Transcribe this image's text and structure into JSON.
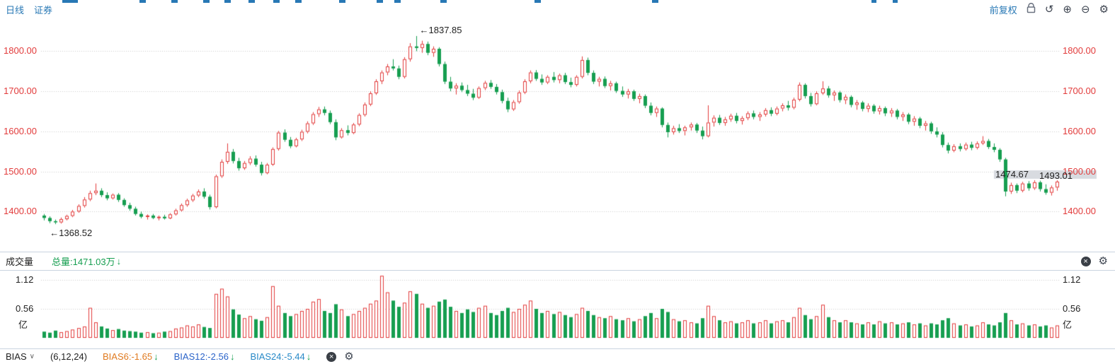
{
  "toolbar": {
    "period_label": "日线",
    "instrument_label": "证券",
    "adjust_label": "前复权",
    "undo_glyph": "↺",
    "zoom_in_glyph": "⊕",
    "zoom_out_glyph": "⊖",
    "settings_glyph": "⚙",
    "close_glyph": "×"
  },
  "colors": {
    "accent": "#2878b5",
    "up": "#e23b3b",
    "down": "#169e50",
    "axis_text": "#e23b3b",
    "dark": "#222222",
    "band": "#d8dbe0",
    "grid": "#cfcfcf",
    "orange": "#e07a1f",
    "blue": "#2a63c9",
    "blue2": "#2789c7"
  },
  "volume_panel": {
    "title": "成交量",
    "total_label": "总量:1471.03万",
    "down_arrow": "↓"
  },
  "bias_panel": {
    "indicator_label": "BIAS",
    "dropdown_glyph": "∨",
    "params_label": "(6,12,24)",
    "down_arrow": "↓",
    "values": [
      {
        "label": "BIAS6:-1.65",
        "color": "#e07a1f"
      },
      {
        "label": "BIAS12:-2.56",
        "color": "#2a63c9"
      },
      {
        "label": "BIAS24:-5.44",
        "color": "#2789c7"
      }
    ]
  },
  "chart_data": {
    "type": "candlestick",
    "title": "",
    "price_axis": {
      "ticks": [
        "1800.00",
        "1700.00",
        "1600.00",
        "1500.00",
        "1400.00"
      ],
      "range": [
        1330,
        1866
      ]
    },
    "volume_axis": {
      "ticks": [
        "1.12",
        "0.56"
      ],
      "unit": "亿",
      "range": [
        0,
        1.25
      ]
    },
    "annotations": {
      "high": "←1837.85",
      "low": "←1368.52",
      "last_price": "1474.67",
      "axis_highlight": "1493.01"
    },
    "candles": [
      [
        1390,
        1394,
        1378,
        1384
      ],
      [
        1384,
        1388,
        1371,
        1376
      ],
      [
        1376,
        1380,
        1368.52,
        1373
      ],
      [
        1373,
        1385,
        1370,
        1381
      ],
      [
        1381,
        1392,
        1378,
        1389
      ],
      [
        1389,
        1404,
        1386,
        1400
      ],
      [
        1400,
        1418,
        1397,
        1414
      ],
      [
        1414,
        1436,
        1410,
        1430
      ],
      [
        1430,
        1452,
        1426,
        1446
      ],
      [
        1446,
        1470,
        1441,
        1452
      ],
      [
        1452,
        1458,
        1436,
        1441
      ],
      [
        1441,
        1448,
        1428,
        1433
      ],
      [
        1433,
        1445,
        1430,
        1442
      ],
      [
        1442,
        1446,
        1424,
        1429
      ],
      [
        1429,
        1433,
        1412,
        1416
      ],
      [
        1416,
        1422,
        1402,
        1407
      ],
      [
        1407,
        1412,
        1390,
        1394
      ],
      [
        1394,
        1400,
        1383,
        1387
      ],
      [
        1387,
        1393,
        1380,
        1390
      ],
      [
        1390,
        1394,
        1381,
        1384
      ],
      [
        1384,
        1390,
        1378,
        1387
      ],
      [
        1387,
        1392,
        1380,
        1383
      ],
      [
        1383,
        1396,
        1381,
        1393
      ],
      [
        1393,
        1407,
        1390,
        1403
      ],
      [
        1403,
        1420,
        1400,
        1416
      ],
      [
        1416,
        1432,
        1412,
        1428
      ],
      [
        1428,
        1444,
        1424,
        1440
      ],
      [
        1440,
        1455,
        1436,
        1450
      ],
      [
        1450,
        1458,
        1432,
        1437
      ],
      [
        1437,
        1442,
        1405,
        1411
      ],
      [
        1411,
        1492,
        1408,
        1488
      ],
      [
        1488,
        1530,
        1484,
        1524
      ],
      [
        1524,
        1570,
        1519,
        1549
      ],
      [
        1549,
        1556,
        1520,
        1526
      ],
      [
        1526,
        1534,
        1502,
        1508
      ],
      [
        1508,
        1526,
        1504,
        1521
      ],
      [
        1521,
        1538,
        1516,
        1532
      ],
      [
        1532,
        1540,
        1512,
        1517
      ],
      [
        1517,
        1524,
        1490,
        1496
      ],
      [
        1496,
        1521,
        1493,
        1517
      ],
      [
        1517,
        1560,
        1514,
        1556
      ],
      [
        1556,
        1601,
        1552,
        1597
      ],
      [
        1597,
        1605,
        1574,
        1579
      ],
      [
        1579,
        1586,
        1558,
        1563
      ],
      [
        1563,
        1584,
        1560,
        1580
      ],
      [
        1580,
        1604,
        1576,
        1599
      ],
      [
        1599,
        1625,
        1595,
        1620
      ],
      [
        1620,
        1648,
        1616,
        1643
      ],
      [
        1643,
        1661,
        1636,
        1655
      ],
      [
        1655,
        1662,
        1640,
        1646
      ],
      [
        1646,
        1652,
        1618,
        1623
      ],
      [
        1623,
        1630,
        1578,
        1585
      ],
      [
        1585,
        1608,
        1582,
        1603
      ],
      [
        1603,
        1615,
        1590,
        1596
      ],
      [
        1596,
        1621,
        1593,
        1617
      ],
      [
        1617,
        1645,
        1613,
        1641
      ],
      [
        1641,
        1672,
        1637,
        1667
      ],
      [
        1667,
        1700,
        1663,
        1695
      ],
      [
        1695,
        1730,
        1691,
        1725
      ],
      [
        1725,
        1752,
        1718,
        1747
      ],
      [
        1747,
        1768,
        1740,
        1762
      ],
      [
        1762,
        1780,
        1752,
        1757
      ],
      [
        1757,
        1764,
        1730,
        1736
      ],
      [
        1736,
        1785,
        1732,
        1780
      ],
      [
        1780,
        1820,
        1774,
        1812
      ],
      [
        1812,
        1837.85,
        1800,
        1808
      ],
      [
        1808,
        1826,
        1796,
        1818
      ],
      [
        1818,
        1824,
        1790,
        1796
      ],
      [
        1796,
        1812,
        1786,
        1806
      ],
      [
        1806,
        1810,
        1762,
        1768
      ],
      [
        1768,
        1774,
        1718,
        1724
      ],
      [
        1724,
        1736,
        1700,
        1707
      ],
      [
        1707,
        1720,
        1692,
        1714
      ],
      [
        1714,
        1722,
        1698,
        1703
      ],
      [
        1703,
        1716,
        1688,
        1694
      ],
      [
        1694,
        1706,
        1678,
        1684
      ],
      [
        1684,
        1712,
        1681,
        1708
      ],
      [
        1708,
        1726,
        1703,
        1721
      ],
      [
        1721,
        1728,
        1706,
        1711
      ],
      [
        1711,
        1718,
        1692,
        1698
      ],
      [
        1698,
        1704,
        1670,
        1676
      ],
      [
        1676,
        1684,
        1648,
        1655
      ],
      [
        1655,
        1678,
        1651,
        1673
      ],
      [
        1673,
        1702,
        1669,
        1697
      ],
      [
        1697,
        1730,
        1693,
        1725
      ],
      [
        1725,
        1752,
        1720,
        1747
      ],
      [
        1747,
        1753,
        1726,
        1731
      ],
      [
        1731,
        1742,
        1716,
        1722
      ],
      [
        1722,
        1740,
        1718,
        1736
      ],
      [
        1736,
        1748,
        1722,
        1728
      ],
      [
        1728,
        1744,
        1720,
        1740
      ],
      [
        1740,
        1746,
        1718,
        1723
      ],
      [
        1723,
        1734,
        1710,
        1716
      ],
      [
        1716,
        1740,
        1712,
        1736
      ],
      [
        1736,
        1787,
        1732,
        1778
      ],
      [
        1778,
        1784,
        1740,
        1746
      ],
      [
        1746,
        1752,
        1718,
        1724
      ],
      [
        1724,
        1736,
        1712,
        1731
      ],
      [
        1731,
        1737,
        1708,
        1713
      ],
      [
        1713,
        1726,
        1702,
        1720
      ],
      [
        1720,
        1724,
        1696,
        1701
      ],
      [
        1701,
        1712,
        1686,
        1692
      ],
      [
        1692,
        1706,
        1682,
        1700
      ],
      [
        1700,
        1704,
        1676,
        1681
      ],
      [
        1681,
        1694,
        1670,
        1688
      ],
      [
        1688,
        1692,
        1658,
        1664
      ],
      [
        1664,
        1672,
        1640,
        1646
      ],
      [
        1646,
        1662,
        1636,
        1657
      ],
      [
        1657,
        1660,
        1610,
        1616
      ],
      [
        1616,
        1622,
        1585,
        1598
      ],
      [
        1598,
        1614,
        1592,
        1608
      ],
      [
        1608,
        1618,
        1596,
        1601
      ],
      [
        1601,
        1614,
        1590,
        1610
      ],
      [
        1610,
        1622,
        1602,
        1617
      ],
      [
        1617,
        1621,
        1596,
        1602
      ],
      [
        1602,
        1612,
        1580,
        1588
      ],
      [
        1588,
        1665,
        1585,
        1622
      ],
      [
        1622,
        1640,
        1612,
        1634
      ],
      [
        1634,
        1641,
        1616,
        1621
      ],
      [
        1621,
        1636,
        1614,
        1630
      ],
      [
        1630,
        1644,
        1624,
        1639
      ],
      [
        1639,
        1646,
        1620,
        1626
      ],
      [
        1626,
        1638,
        1617,
        1633
      ],
      [
        1633,
        1650,
        1628,
        1645
      ],
      [
        1645,
        1652,
        1630,
        1636
      ],
      [
        1636,
        1648,
        1626,
        1642
      ],
      [
        1642,
        1658,
        1637,
        1653
      ],
      [
        1653,
        1660,
        1638,
        1644
      ],
      [
        1644,
        1662,
        1640,
        1657
      ],
      [
        1657,
        1670,
        1650,
        1665
      ],
      [
        1665,
        1676,
        1652,
        1659
      ],
      [
        1659,
        1684,
        1655,
        1679
      ],
      [
        1679,
        1722,
        1675,
        1716
      ],
      [
        1716,
        1720,
        1682,
        1688
      ],
      [
        1688,
        1696,
        1662,
        1668
      ],
      [
        1668,
        1700,
        1665,
        1695
      ],
      [
        1695,
        1725,
        1691,
        1707
      ],
      [
        1707,
        1713,
        1684,
        1690
      ],
      [
        1690,
        1702,
        1676,
        1697
      ],
      [
        1697,
        1701,
        1672,
        1678
      ],
      [
        1678,
        1692,
        1668,
        1686
      ],
      [
        1686,
        1690,
        1660,
        1666
      ],
      [
        1666,
        1678,
        1654,
        1672
      ],
      [
        1672,
        1676,
        1650,
        1656
      ],
      [
        1656,
        1670,
        1648,
        1664
      ],
      [
        1664,
        1668,
        1644,
        1650
      ],
      [
        1650,
        1664,
        1642,
        1658
      ],
      [
        1658,
        1662,
        1638,
        1645
      ],
      [
        1645,
        1658,
        1636,
        1652
      ],
      [
        1652,
        1656,
        1630,
        1636
      ],
      [
        1636,
        1648,
        1626,
        1642
      ],
      [
        1642,
        1646,
        1618,
        1624
      ],
      [
        1624,
        1638,
        1614,
        1632
      ],
      [
        1632,
        1636,
        1608,
        1614
      ],
      [
        1614,
        1626,
        1602,
        1620
      ],
      [
        1620,
        1624,
        1594,
        1600
      ],
      [
        1600,
        1610,
        1585,
        1592
      ],
      [
        1592,
        1598,
        1560,
        1566
      ],
      [
        1566,
        1572,
        1545,
        1552
      ],
      [
        1552,
        1568,
        1548,
        1563
      ],
      [
        1563,
        1570,
        1550,
        1556
      ],
      [
        1556,
        1572,
        1552,
        1567
      ],
      [
        1567,
        1574,
        1553,
        1559
      ],
      [
        1559,
        1575,
        1555,
        1570
      ],
      [
        1570,
        1588,
        1566,
        1576
      ],
      [
        1576,
        1581,
        1556,
        1561
      ],
      [
        1561,
        1570,
        1548,
        1554
      ],
      [
        1554,
        1558,
        1524,
        1530
      ],
      [
        1530,
        1534,
        1438,
        1450
      ],
      [
        1450,
        1472,
        1444,
        1466
      ],
      [
        1466,
        1470,
        1446,
        1452
      ],
      [
        1452,
        1474,
        1448,
        1470
      ],
      [
        1470,
        1476,
        1452,
        1458
      ],
      [
        1458,
        1478,
        1454,
        1473
      ],
      [
        1473,
        1477,
        1450,
        1456
      ],
      [
        1456,
        1468,
        1442,
        1447
      ],
      [
        1447,
        1465,
        1440,
        1460
      ],
      [
        1460,
        1478,
        1452,
        1474.67
      ]
    ],
    "volumes": [
      0.12,
      0.1,
      0.14,
      0.11,
      0.13,
      0.16,
      0.19,
      0.22,
      0.58,
      0.3,
      0.22,
      0.18,
      0.15,
      0.17,
      0.14,
      0.13,
      0.12,
      0.1,
      0.11,
      0.09,
      0.1,
      0.12,
      0.13,
      0.18,
      0.2,
      0.24,
      0.22,
      0.26,
      0.21,
      0.19,
      0.85,
      0.95,
      0.8,
      0.55,
      0.45,
      0.38,
      0.42,
      0.36,
      0.33,
      0.4,
      1.0,
      0.62,
      0.48,
      0.42,
      0.46,
      0.52,
      0.56,
      0.7,
      0.75,
      0.52,
      0.48,
      0.65,
      0.55,
      0.42,
      0.46,
      0.52,
      0.58,
      0.66,
      0.72,
      1.2,
      0.88,
      0.72,
      0.6,
      0.68,
      0.9,
      0.85,
      0.66,
      0.58,
      0.62,
      0.7,
      0.74,
      0.6,
      0.52,
      0.48,
      0.55,
      0.5,
      0.58,
      0.62,
      0.48,
      0.44,
      0.52,
      0.58,
      0.5,
      0.56,
      0.64,
      0.72,
      0.56,
      0.48,
      0.52,
      0.46,
      0.5,
      0.44,
      0.4,
      0.46,
      0.58,
      0.52,
      0.44,
      0.4,
      0.38,
      0.42,
      0.36,
      0.34,
      0.38,
      0.32,
      0.36,
      0.42,
      0.48,
      0.38,
      0.56,
      0.5,
      0.36,
      0.32,
      0.34,
      0.3,
      0.28,
      0.38,
      0.62,
      0.42,
      0.34,
      0.3,
      0.32,
      0.28,
      0.3,
      0.34,
      0.28,
      0.3,
      0.34,
      0.28,
      0.32,
      0.34,
      0.3,
      0.4,
      0.58,
      0.44,
      0.36,
      0.42,
      0.64,
      0.4,
      0.34,
      0.3,
      0.34,
      0.3,
      0.28,
      0.26,
      0.3,
      0.26,
      0.32,
      0.28,
      0.3,
      0.26,
      0.28,
      0.3,
      0.26,
      0.28,
      0.24,
      0.28,
      0.26,
      0.34,
      0.38,
      0.28,
      0.24,
      0.26,
      0.22,
      0.24,
      0.3,
      0.26,
      0.24,
      0.3,
      0.48,
      0.34,
      0.26,
      0.28,
      0.24,
      0.26,
      0.22,
      0.24,
      0.2,
      0.24
    ]
  }
}
